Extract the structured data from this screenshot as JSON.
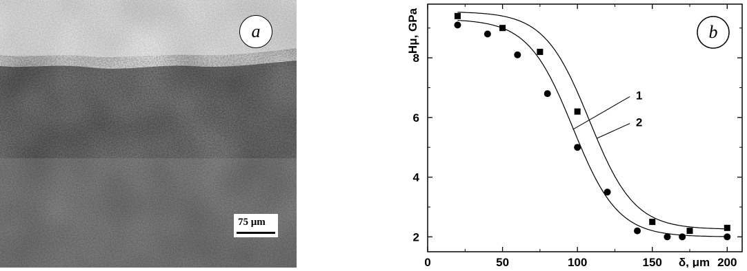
{
  "panel_a": {
    "letter": "a",
    "scale_bar_label": "75 μm"
  },
  "chart_data": {
    "type": "scatter",
    "panel_letter": "b",
    "ylabel": "Hμ, GPa",
    "xlabel": "δ, μm",
    "xlim": [
      0,
      210
    ],
    "ylim": [
      1.5,
      9.8
    ],
    "xticks": [
      0,
      50,
      100,
      150,
      200
    ],
    "yticks": [
      2,
      4,
      6,
      8
    ],
    "grid": false,
    "series": [
      {
        "name": "1",
        "marker": "square",
        "x": [
          20,
          50,
          75,
          100,
          150,
          175,
          200
        ],
        "y": [
          9.4,
          9.0,
          8.2,
          6.2,
          2.5,
          2.2,
          2.3
        ]
      },
      {
        "name": "2",
        "marker": "circle",
        "x": [
          20,
          40,
          60,
          80,
          100,
          120,
          140,
          160,
          170,
          200
        ],
        "y": [
          9.1,
          8.8,
          8.1,
          6.8,
          5.0,
          3.5,
          2.2,
          2.0,
          2.0,
          2.0
        ]
      }
    ]
  }
}
